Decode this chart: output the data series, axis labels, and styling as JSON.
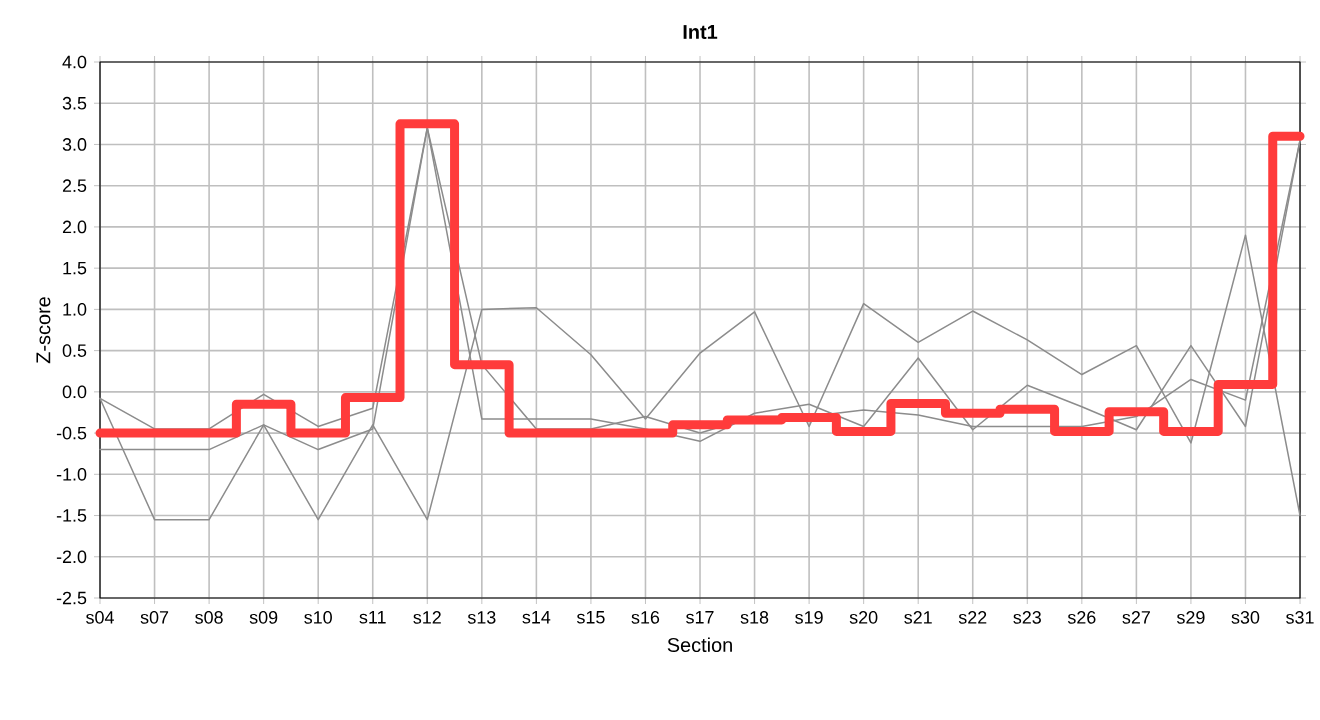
{
  "chart_data": {
    "type": "line",
    "title": "Int1",
    "xlabel": "Section",
    "ylabel": "Z-score",
    "categories": [
      "s04",
      "s07",
      "s08",
      "s09",
      "s10",
      "s11",
      "s12",
      "s13",
      "s14",
      "s15",
      "s16",
      "s17",
      "s18",
      "s19",
      "s20",
      "s21",
      "s22",
      "s23",
      "s26",
      "s27",
      "s29",
      "s30",
      "s31"
    ],
    "ylim": [
      -2.5,
      4
    ],
    "yticks": [
      {
        "value": -2.5,
        "label": "-2.5"
      },
      {
        "value": -2,
        "label": "-2.0"
      },
      {
        "value": -1.5,
        "label": "-1.5"
      },
      {
        "value": -1,
        "label": "-1.0"
      },
      {
        "value": -0.5,
        "label": "-0.5"
      },
      {
        "value": 0,
        "label": "0.0"
      },
      {
        "value": 0.5,
        "label": "0.5"
      },
      {
        "value": 1,
        "label": "1.0"
      },
      {
        "value": 1.5,
        "label": "1.5"
      },
      {
        "value": 2,
        "label": "2.0"
      },
      {
        "value": 2.5,
        "label": "2.5"
      },
      {
        "value": 3,
        "label": "3.0"
      },
      {
        "value": 3.5,
        "label": "3.5"
      },
      {
        "value": 4,
        "label": "4.0"
      }
    ],
    "grid": true,
    "marker": "none",
    "series": [
      {
        "color": "#8c8c8c",
        "values": [
          -0.08,
          -1.55,
          -1.55,
          -0.4,
          -1.55,
          -0.4,
          -1.55,
          1.0,
          1.02,
          0.45,
          -0.33,
          0.47,
          0.97,
          -0.42,
          1.07,
          0.6,
          0.98,
          0.63,
          0.21,
          0.56,
          -0.62,
          1.9,
          -1.5
        ]
      },
      {
        "color": "#8c8c8c",
        "values": [
          -0.08,
          -0.45,
          -0.45,
          -0.03,
          -0.42,
          -0.2,
          3.2,
          -0.33,
          -0.33,
          -0.33,
          -0.45,
          -0.6,
          -0.26,
          -0.15,
          -0.42,
          0.41,
          -0.46,
          0.08,
          -0.18,
          -0.46,
          0.56,
          -0.42,
          3.05
        ]
      },
      {
        "color": "#8c8c8c",
        "values": [
          -0.7,
          -0.7,
          -0.7,
          -0.4,
          -0.7,
          -0.45,
          3.2,
          0.33,
          -0.45,
          -0.45,
          -0.3,
          -0.5,
          -0.3,
          -0.3,
          -0.22,
          -0.28,
          -0.42,
          -0.42,
          -0.42,
          -0.3,
          0.15,
          -0.1,
          3.05
        ]
      },
      {
        "type": "step",
        "color": "#ff3b3b",
        "values": [
          -0.5,
          -0.5,
          -0.5,
          -0.15,
          -0.5,
          -0.07,
          3.25,
          0.33,
          -0.5,
          -0.5,
          -0.5,
          -0.4,
          -0.34,
          -0.31,
          -0.48,
          -0.14,
          -0.26,
          -0.21,
          -0.48,
          -0.24,
          -0.48,
          0.09,
          3.1
        ]
      }
    ]
  }
}
